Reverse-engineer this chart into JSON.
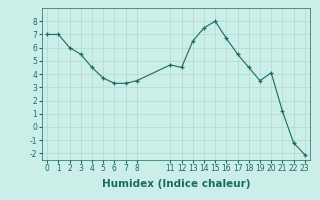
{
  "x": [
    0,
    1,
    2,
    3,
    4,
    5,
    6,
    7,
    8,
    11,
    12,
    13,
    14,
    15,
    16,
    17,
    18,
    19,
    20,
    21,
    22,
    23
  ],
  "y": [
    7.0,
    7.0,
    6.0,
    5.5,
    4.5,
    3.7,
    3.3,
    3.3,
    3.5,
    4.7,
    4.5,
    6.5,
    7.5,
    8.0,
    6.7,
    5.5,
    4.5,
    3.5,
    4.1,
    1.2,
    -1.2,
    -2.1
  ],
  "line_color": "#1a6b5e",
  "bg_color": "#cceee8",
  "grid_color": "#b0d8d2",
  "xlabel": "Humidex (Indice chaleur)",
  "ylim": [
    -2.5,
    9.0
  ],
  "xlim": [
    -0.5,
    23.5
  ],
  "yticks": [
    -2,
    -1,
    0,
    1,
    2,
    3,
    4,
    5,
    6,
    7,
    8
  ],
  "xticks": [
    0,
    1,
    2,
    3,
    4,
    5,
    6,
    7,
    8,
    11,
    12,
    13,
    14,
    15,
    16,
    17,
    18,
    19,
    20,
    21,
    22,
    23
  ],
  "tick_fontsize": 5.5,
  "label_fontsize": 7.5
}
